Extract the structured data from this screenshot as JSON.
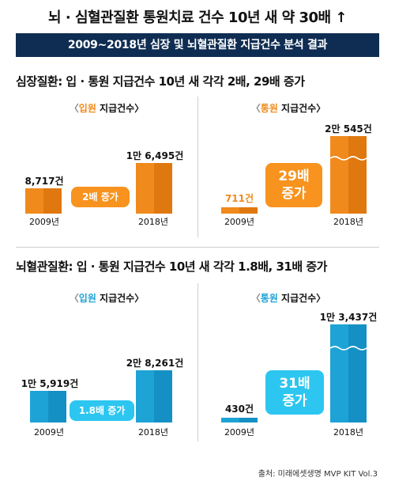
{
  "title": "뇌 · 심혈관질환 통원치료 건수 10년 새 약 30배 ↑",
  "banner": "2009~2018년 심장 및 뇌혈관질환 지급건수 분석 결과",
  "source": "출처: 미래에셋생명 MVP KIT Vol.3",
  "colors": {
    "orange": "#f08a1c",
    "blue": "#1ea3d6",
    "navy": "#0f2d52"
  },
  "chart_data": [
    {
      "type": "bar",
      "section": "심장질환: 입 · 통원 지급건수 10년 새 각각 2배, 29배 증가",
      "title": "입원 지급건수",
      "title_parts": [
        "〈",
        "입원",
        " 지급건수〉"
      ],
      "categories": [
        "2009년",
        "2018년"
      ],
      "values": [
        8717,
        16495
      ],
      "value_labels": [
        "8,717건",
        "1만 6,495건"
      ],
      "growth_label": [
        "2배 증가"
      ],
      "color": "#f08a1c"
    },
    {
      "type": "bar",
      "section": "심장질환: 입 · 통원 지급건수 10년 새 각각 2배, 29배 증가",
      "title": "통원 지급건수",
      "title_parts": [
        "〈",
        "통원",
        " 지급건수〉"
      ],
      "categories": [
        "2009년",
        "2018년"
      ],
      "values": [
        711,
        20545
      ],
      "value_labels": [
        "711건",
        "2만 545건"
      ],
      "growth_label": [
        "29배",
        "증가"
      ],
      "broken_axis": true,
      "color": "#f08a1c"
    },
    {
      "type": "bar",
      "section": "뇌혈관질환: 입 · 통원 지급건수 10년 새 각각 1.8배, 31배 증가",
      "title": "입원 지급건수",
      "title_parts": [
        "〈",
        "입원",
        " 지급건수〉"
      ],
      "categories": [
        "2009년",
        "2018년"
      ],
      "values": [
        15919,
        28261
      ],
      "value_labels": [
        "1만 5,919건",
        "2만 8,261건"
      ],
      "growth_label": [
        "1.8배 증가"
      ],
      "color": "#1ea3d6"
    },
    {
      "type": "bar",
      "section": "뇌혈관질환: 입 · 통원 지급건수 10년 새 각각 1.8배, 31배 증가",
      "title": "통원 지급건수",
      "title_parts": [
        "〈",
        "통원",
        " 지급건수〉"
      ],
      "categories": [
        "2009년",
        "2018년"
      ],
      "values": [
        430,
        13437
      ],
      "value_labels": [
        "430건",
        "1만 3,437건"
      ],
      "growth_label": [
        "31배",
        "증가"
      ],
      "broken_axis": true,
      "color": "#1ea3d6"
    }
  ]
}
